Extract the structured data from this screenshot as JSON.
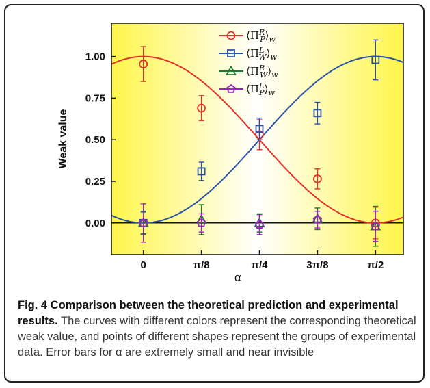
{
  "chart_data": {
    "type": "scatter",
    "xlabel": "α",
    "ylabel": "Weak value",
    "x_ticks": [
      "0",
      "π/8",
      "π/4",
      "3π/8",
      "π/2"
    ],
    "x_tick_values": [
      0,
      0.3927,
      0.7854,
      1.1781,
      1.5708
    ],
    "y_ticks": [
      "0.00",
      "0.25",
      "0.50",
      "0.75",
      "1.00"
    ],
    "y_tick_values": [
      0,
      0.25,
      0.5,
      0.75,
      1.0
    ],
    "xlim": [
      -0.216,
      1.759
    ],
    "ylim": [
      -0.19,
      1.2
    ],
    "legend_position": "top-center",
    "series": [
      {
        "key": "PR",
        "color": "#e0322b",
        "marker": "circle",
        "theory": "cos2",
        "x": [
          0,
          0.3927,
          0.7854,
          1.1781,
          1.5708
        ],
        "y": [
          0.955,
          0.69,
          0.53,
          0.265,
          0.0
        ],
        "err": [
          0.105,
          0.075,
          0.09,
          0.06,
          0.095
        ]
      },
      {
        "key": "WL",
        "color": "#2a52a8",
        "marker": "square",
        "theory": "sin2",
        "x": [
          0,
          0.3927,
          0.7854,
          1.1781,
          1.5708
        ],
        "y": [
          0.0,
          0.31,
          0.565,
          0.66,
          0.98
        ],
        "err": [
          0.07,
          0.055,
          0.065,
          0.065,
          0.12
        ]
      },
      {
        "key": "WR",
        "color": "#1a7a2e",
        "marker": "triangle",
        "theory": "zero",
        "x": [
          0,
          0.3927,
          0.7854,
          1.1781,
          1.5708
        ],
        "y": [
          0.0,
          0.02,
          0.0,
          0.025,
          -0.02
        ],
        "err": [
          0.065,
          0.09,
          0.055,
          0.065,
          0.12
        ]
      },
      {
        "key": "PL",
        "color": "#a020c8",
        "marker": "pentagon",
        "theory": "zero",
        "x": [
          0,
          0.3927,
          0.7854,
          1.1781,
          1.5708
        ],
        "y": [
          0.0,
          0.0,
          -0.01,
          0.02,
          -0.02
        ],
        "err": [
          0.115,
          0.055,
          0.06,
          0.05,
          0.09
        ]
      }
    ],
    "legend": [
      {
        "op": "Π",
        "sup": "R",
        "sub": "P",
        "after": "w"
      },
      {
        "op": "Π",
        "sup": "L",
        "sub": "W",
        "after": "w"
      },
      {
        "op": "Π",
        "sup": "R",
        "sub": "W",
        "after": "w"
      },
      {
        "op": "Π",
        "sup": "L",
        "sub": "P",
        "after": "w"
      }
    ]
  },
  "caption": {
    "bold": "Fig. 4 Comparison between the theoretical prediction and experimental results.",
    "text": " The curves with different colors represent the corresponding theoretical weak value, and points of different shapes represent the groups of experimental data. Error bars for α are extremely small and near invisible"
  },
  "colors": {
    "gradient_edge": "#fff64a",
    "gradient_center": "#ffffff"
  }
}
